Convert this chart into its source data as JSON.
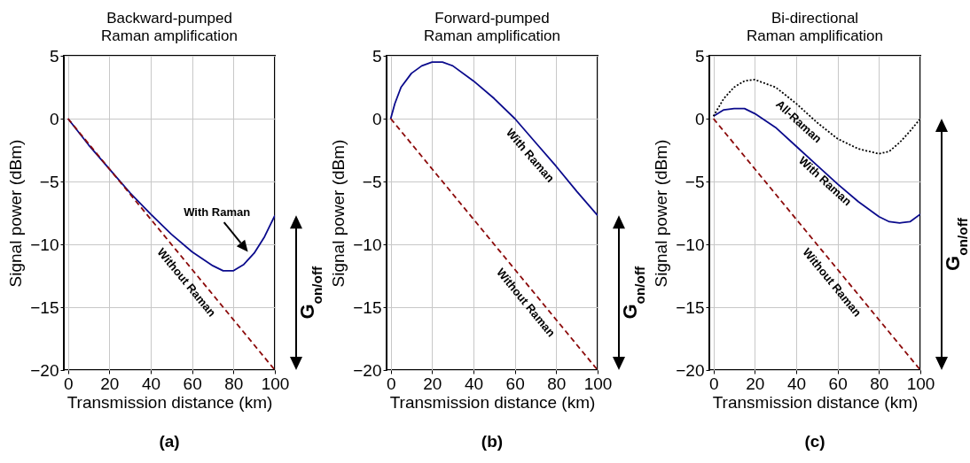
{
  "chart_data": [
    {
      "type": "line",
      "title": "Backward-pumped\nRaman amplification",
      "xlabel": "Transmission distance (km)",
      "ylabel": "Signal power (dBm)",
      "xlim": [
        -2,
        100
      ],
      "ylim": [
        -20,
        5
      ],
      "xticks": [
        0,
        20,
        40,
        60,
        80,
        100
      ],
      "yticks": [
        -20,
        -15,
        -10,
        -5,
        0,
        5
      ],
      "grid": true,
      "marker": "none",
      "series": [
        {
          "name": "With Raman",
          "color": "#0a0a8c",
          "line_style": "solid",
          "x": [
            0,
            10,
            20,
            30,
            40,
            50,
            60,
            70,
            75,
            80,
            85,
            90,
            95,
            100
          ],
          "values": [
            0,
            -2.1,
            -4.0,
            -5.9,
            -7.6,
            -9.2,
            -10.6,
            -11.7,
            -12.1,
            -12.1,
            -11.6,
            -10.7,
            -9.4,
            -7.7
          ]
        },
        {
          "name": "Without Raman",
          "color": "#8b0a0a",
          "line_style": "dashed",
          "x": [
            0,
            100
          ],
          "values": [
            0,
            -20
          ]
        }
      ],
      "annotations": [
        "G$_{on/off}$",
        "(a)"
      ]
    },
    {
      "type": "line",
      "title": "Forward-pumped\nRaman amplification",
      "xlabel": "Transmission distance (km)",
      "ylabel": "Signal power (dBm)",
      "xlim": [
        -2,
        100
      ],
      "ylim": [
        -20,
        5
      ],
      "xticks": [
        0,
        20,
        40,
        60,
        80,
        100
      ],
      "yticks": [
        -20,
        -15,
        -10,
        -5,
        0,
        5
      ],
      "grid": true,
      "marker": "none",
      "series": [
        {
          "name": "With Raman",
          "color": "#0a0a8c",
          "line_style": "solid",
          "x": [
            0,
            2,
            5,
            10,
            15,
            20,
            25,
            30,
            40,
            50,
            60,
            70,
            80,
            90,
            100
          ],
          "values": [
            0,
            1.2,
            2.5,
            3.6,
            4.2,
            4.5,
            4.5,
            4.2,
            3.0,
            1.6,
            0,
            -1.9,
            -3.8,
            -5.8,
            -7.7
          ]
        },
        {
          "name": "Without Raman",
          "color": "#8b0a0a",
          "line_style": "dashed",
          "x": [
            0,
            100
          ],
          "values": [
            0,
            -20
          ]
        }
      ],
      "annotations": [
        "G$_{on/off}$",
        "(b)"
      ]
    },
    {
      "type": "line",
      "title": "Bi-directional\nRaman amplification",
      "xlabel": "Transmission distance (km)",
      "ylabel": "Signal power (dBm)",
      "xlim": [
        -2,
        100
      ],
      "ylim": [
        -20,
        5
      ],
      "xticks": [
        0,
        20,
        40,
        60,
        80,
        100
      ],
      "yticks": [
        -20,
        -15,
        -10,
        -5,
        0,
        5
      ],
      "grid": true,
      "marker": "none",
      "series": [
        {
          "name": "All-Raman",
          "color": "#000000",
          "line_style": "dotted",
          "x": [
            0,
            5,
            10,
            15,
            20,
            30,
            40,
            50,
            60,
            70,
            80,
            85,
            90,
            95,
            100
          ],
          "values": [
            0.2,
            1.6,
            2.5,
            3.0,
            3.1,
            2.5,
            1.2,
            -0.3,
            -1.6,
            -2.4,
            -2.8,
            -2.6,
            -1.9,
            -1.0,
            0
          ]
        },
        {
          "name": "With Raman",
          "color": "#0a0a8c",
          "line_style": "solid",
          "x": [
            0,
            5,
            10,
            15,
            20,
            30,
            40,
            50,
            60,
            70,
            80,
            85,
            90,
            95,
            100
          ],
          "values": [
            0.2,
            0.7,
            0.8,
            0.8,
            0.4,
            -0.7,
            -2.2,
            -3.7,
            -5.2,
            -6.6,
            -7.8,
            -8.2,
            -8.3,
            -8.2,
            -7.6
          ]
        },
        {
          "name": "Without Raman",
          "color": "#8b0a0a",
          "line_style": "dashed",
          "x": [
            0,
            100
          ],
          "values": [
            0,
            -20
          ]
        }
      ],
      "annotations": [
        "G$_{on/off}$",
        "(c)"
      ]
    }
  ]
}
